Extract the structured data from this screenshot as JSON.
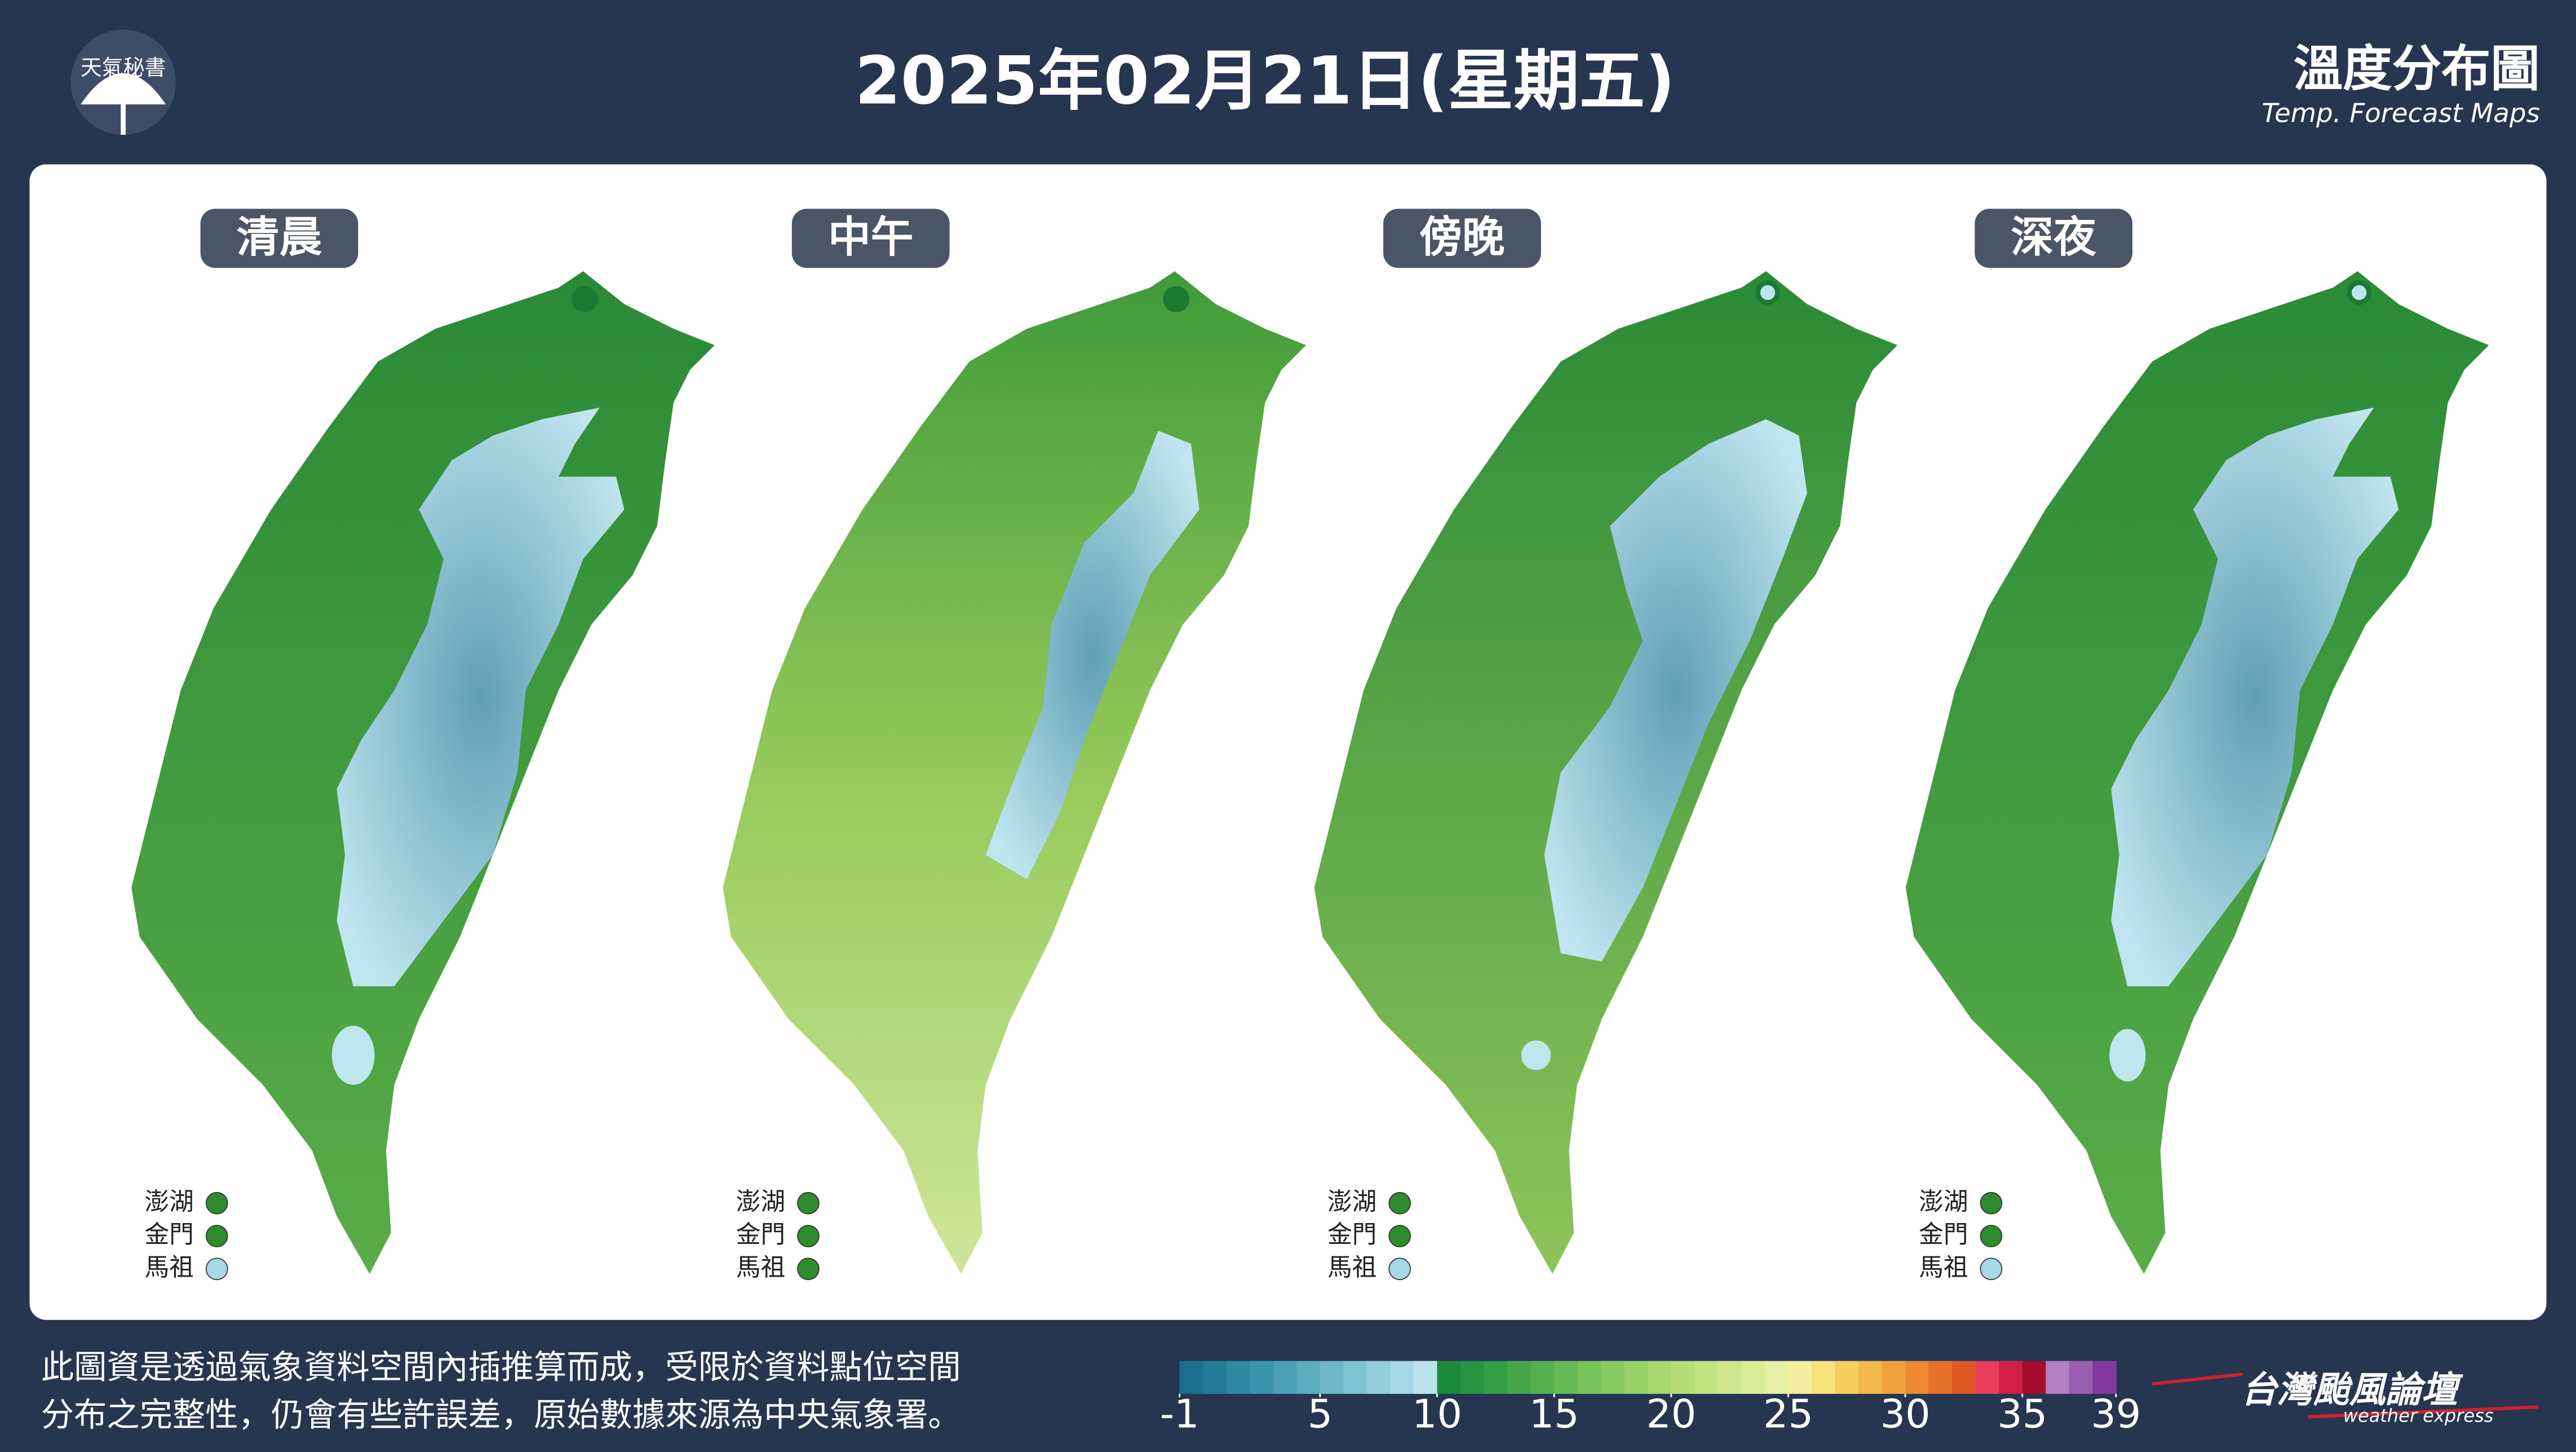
{
  "header": {
    "logo_text": "天氣秘書",
    "title": "2025年02月21日(星期五)",
    "right_title": "溫度分布圖",
    "right_subtitle": "Temp. Forecast Maps"
  },
  "panels": [
    {
      "label": "清晨",
      "islands": [
        {
          "name": "澎湖",
          "color": "#2e8b2e"
        },
        {
          "name": "金門",
          "color": "#2e8b2e"
        },
        {
          "name": "馬祖",
          "color": "#a8d8e8"
        }
      ]
    },
    {
      "label": "中午",
      "islands": [
        {
          "name": "澎湖",
          "color": "#2e8b2e"
        },
        {
          "name": "金門",
          "color": "#2e8b2e"
        },
        {
          "name": "馬祖",
          "color": "#2e8b2e"
        }
      ]
    },
    {
      "label": "傍晚",
      "islands": [
        {
          "name": "澎湖",
          "color": "#2e8b2e"
        },
        {
          "name": "金門",
          "color": "#2e8b2e"
        },
        {
          "name": "馬祖",
          "color": "#a8d8e8"
        }
      ]
    },
    {
      "label": "深夜",
      "islands": [
        {
          "name": "澎湖",
          "color": "#2e8b2e"
        },
        {
          "name": "金門",
          "color": "#2e8b2e"
        },
        {
          "name": "馬祖",
          "color": "#a8d8e8"
        }
      ]
    }
  ],
  "footer": {
    "disclaimer": [
      "此圖資是透過氣象資料空間內插推算而成，受限於資料點位空間",
      "分布之完整性，仍會有些許誤差，原始數據來源為中央氣象署。"
    ],
    "brand": "台灣颱風論壇",
    "brand_sub": "weather express"
  },
  "colorbar": {
    "range": [
      -1,
      39
    ],
    "ticks": [
      -1,
      5,
      10,
      15,
      20,
      25,
      30,
      35,
      39
    ],
    "colors": [
      "#1b6f8a",
      "#247b95",
      "#2e88a0",
      "#3a94ab",
      "#4ba0b6",
      "#5cacc0",
      "#6db8ca",
      "#80c3d3",
      "#93cedc",
      "#a6d9e5",
      "#bce4ee",
      "#1a8a3a",
      "#269440",
      "#339e45",
      "#44a84b",
      "#55b150",
      "#66ba56",
      "#77c35c",
      "#88cb62",
      "#98d268",
      "#a8d86f",
      "#b6de78",
      "#c3e382",
      "#cfe88d",
      "#dbec99",
      "#e6f0a6",
      "#f3eea0",
      "#f7e27c",
      "#f5cf5e",
      "#f2b94a",
      "#efa23c",
      "#eb8a32",
      "#e5712a",
      "#de5824",
      "#e83e5a",
      "#d21f49",
      "#a40e2a",
      "#b080c0",
      "#9a5eb0",
      "#83389f"
    ]
  }
}
